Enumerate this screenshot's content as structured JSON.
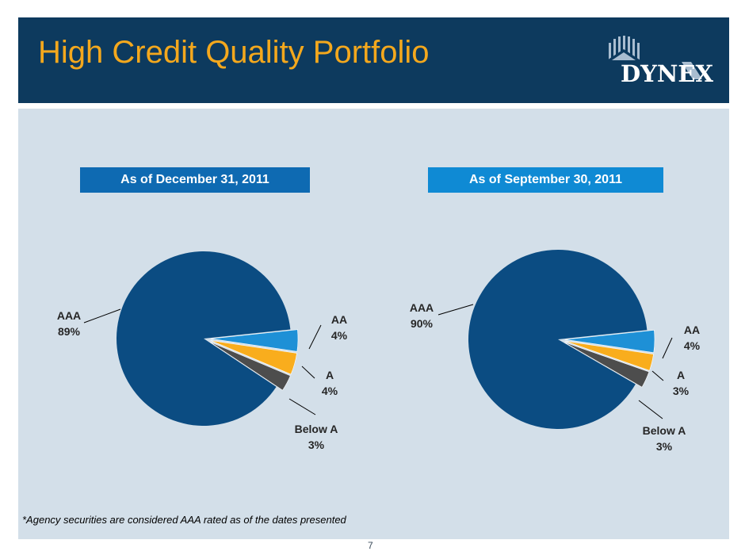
{
  "slide": {
    "title": "High Credit Quality Portfolio",
    "logo_text": "DYNEX",
    "footnote": "*Agency securities are considered AAA rated as of the dates presented",
    "page_number": "7"
  },
  "colors": {
    "header": "#0d3a5e",
    "title": "#f4a81d",
    "panel": "#d3dfe9",
    "AAA": "#0b4c82",
    "AA": "#1e90d6",
    "A": "#f9ad1d",
    "Below A": "#4d4d4d"
  },
  "chart_data": [
    {
      "type": "pie",
      "title": "As of December 31, 2011",
      "slices": [
        {
          "label": "AAA",
          "value": 89,
          "value_label": "89%"
        },
        {
          "label": "AA",
          "value": 4,
          "value_label": "4%"
        },
        {
          "label": "A",
          "value": 4,
          "value_label": "4%"
        },
        {
          "label": "Below A",
          "value": 3,
          "value_label": "3%"
        }
      ]
    },
    {
      "type": "pie",
      "title": "As of September 30, 2011",
      "slices": [
        {
          "label": "AAA",
          "value": 90,
          "value_label": "90%"
        },
        {
          "label": "AA",
          "value": 4,
          "value_label": "4%"
        },
        {
          "label": "A",
          "value": 3,
          "value_label": "3%"
        },
        {
          "label": "Below A",
          "value": 3,
          "value_label": "3%"
        }
      ]
    }
  ]
}
